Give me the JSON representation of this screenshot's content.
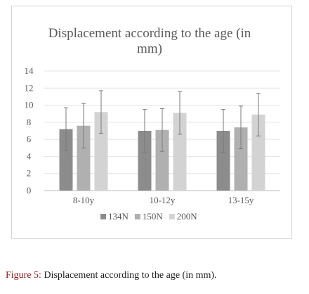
{
  "caption": {
    "label": "Figure 5:",
    "text": "Displacement according to the age (in mm)."
  },
  "chart_data": {
    "type": "bar",
    "title_lines": [
      "Displacement according to the age (in",
      "mm)"
    ],
    "categories": [
      "8-10y",
      "10-12y",
      "13-15y"
    ],
    "ylim": [
      0,
      14
    ],
    "yticks": [
      0,
      2,
      4,
      6,
      8,
      10,
      12,
      14
    ],
    "grid": true,
    "legend_position": "bottom",
    "series": [
      {
        "name": "134N",
        "color": "#8c8c8c",
        "values": [
          7.2,
          7.0,
          7.0
        ],
        "errors": [
          2.5,
          2.5,
          2.5
        ]
      },
      {
        "name": "150N",
        "color": "#b0b0b0",
        "values": [
          7.6,
          7.1,
          7.4
        ],
        "errors": [
          2.6,
          2.5,
          2.5
        ]
      },
      {
        "name": "200N",
        "color": "#d3d3d3",
        "values": [
          9.2,
          9.1,
          8.9
        ],
        "errors": [
          2.5,
          2.5,
          2.5
        ]
      }
    ]
  }
}
